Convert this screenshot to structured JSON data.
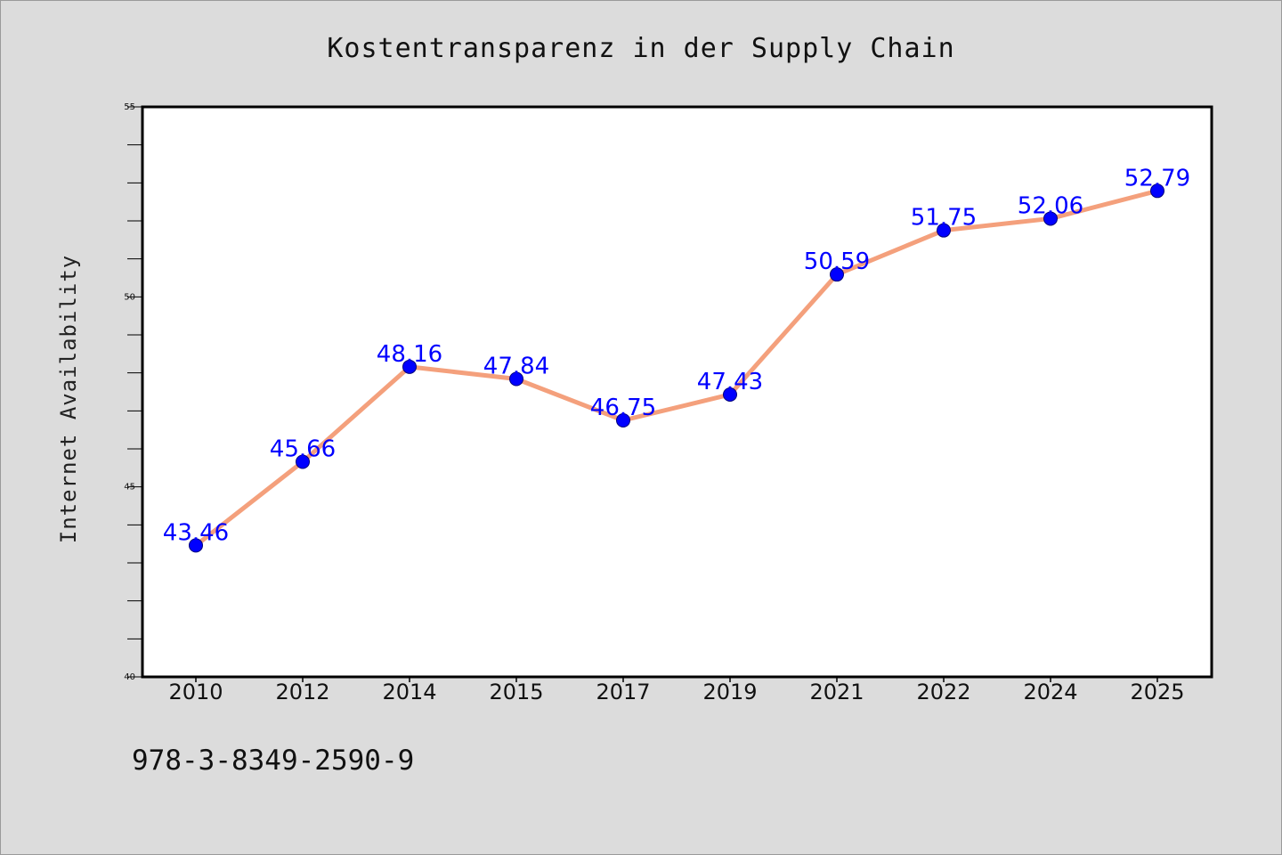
{
  "chart_data": {
    "type": "line",
    "title": "Kostentransparenz in der Supply Chain",
    "xlabel": "",
    "ylabel": "Internet Availability",
    "categories": [
      "2010",
      "2012",
      "2014",
      "2015",
      "2017",
      "2019",
      "2021",
      "2022",
      "2024",
      "2025"
    ],
    "series": [
      {
        "values": [
          43.46,
          45.66,
          48.16,
          47.84,
          46.75,
          47.43,
          50.59,
          51.75,
          52.06,
          52.79
        ],
        "labels": [
          "43.46",
          "45.66",
          "48.16",
          "47.84",
          "46.75",
          "47.43",
          "50.59",
          "51.75",
          "52.06",
          "52.79"
        ],
        "line_color": "#f4a07c",
        "marker_color": "#0000ff"
      }
    ],
    "ylim": [
      40,
      55
    ],
    "yticks": [
      "40",
      "45",
      "50",
      "55"
    ],
    "grid": false,
    "legend": "none"
  },
  "footer": {
    "isbn": "978-3-8349-2590-9"
  },
  "colors": {
    "background": "#dcdcdc",
    "plot_background": "#ffffff",
    "line": "#f4a07c",
    "marker": "#0000ff",
    "data_label": "#0000ff"
  }
}
